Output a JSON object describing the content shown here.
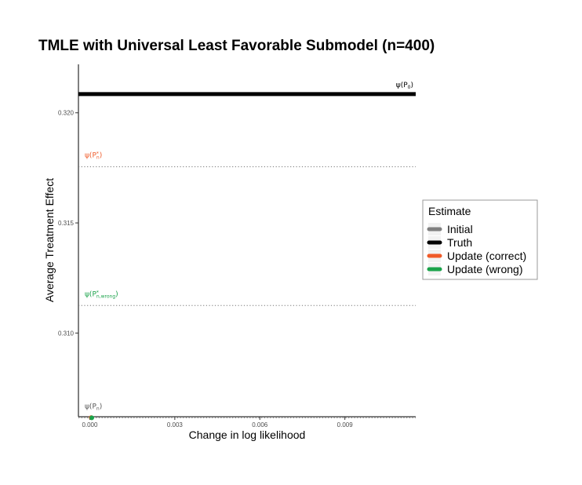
{
  "chart_data": {
    "type": "line",
    "title": "TMLE with Universal Least Favorable Submodel (n=400)",
    "xlabel": "Change in log likelihood",
    "ylabel": "Average Treatment Effect",
    "xlim": [
      -0.0004,
      0.0115
    ],
    "ylim": [
      0.3062,
      0.3222
    ],
    "x_ticks": [
      0.0,
      0.003,
      0.006,
      0.009
    ],
    "x_tick_labels": [
      "0.000",
      "0.003",
      "0.006",
      "0.009"
    ],
    "y_ticks": [
      0.31,
      0.315,
      0.32
    ],
    "y_tick_labels": [
      "0.310",
      "0.315",
      "0.320"
    ],
    "grid": false,
    "legend": {
      "title": "Estimate",
      "placement": "right",
      "entries": [
        {
          "label": "Initial",
          "color": "#808080"
        },
        {
          "label": "Truth",
          "color": "#000000"
        },
        {
          "label": "Update (correct)",
          "color": "#f05a28"
        },
        {
          "label": "Update (wrong)",
          "color": "#1aa34a"
        }
      ]
    },
    "reference_lines": [
      {
        "series": "Truth",
        "y": 0.32085,
        "style": "solid",
        "color": "#000000",
        "label": "ψ(P",
        "label_sub": "0",
        "label_sup": "",
        "label_end": ")",
        "label_pos": "right"
      },
      {
        "series": "Update (correct)",
        "y": 0.31755,
        "style": "dotted",
        "color": "#f05a28",
        "label": "ψ(P",
        "label_sub": "n",
        "label_sup": "*",
        "label_end": ")",
        "label_pos": "left"
      },
      {
        "series": "Update (wrong)",
        "y": 0.31125,
        "style": "dotted",
        "color": "#1aa34a",
        "label": "ψ(P",
        "label_sub": "n,wrong",
        "label_sup": "*",
        "label_end": ")",
        "label_pos": "left"
      },
      {
        "series": "Initial",
        "y": 0.30615,
        "style": "dotted",
        "color": "#555555",
        "label": "ψ(P",
        "label_sub": "n",
        "label_sup": "",
        "label_end": ")",
        "label_pos": "left"
      }
    ],
    "series": [
      {
        "name": "Update (correct)",
        "color": "#f05a28",
        "points": [
          {
            "x": 5e-05,
            "y": 0.30616
          }
        ]
      },
      {
        "name": "Update (wrong)",
        "color": "#1aa34a",
        "points": [
          {
            "x": 7e-05,
            "y": 0.30615
          }
        ]
      }
    ]
  }
}
